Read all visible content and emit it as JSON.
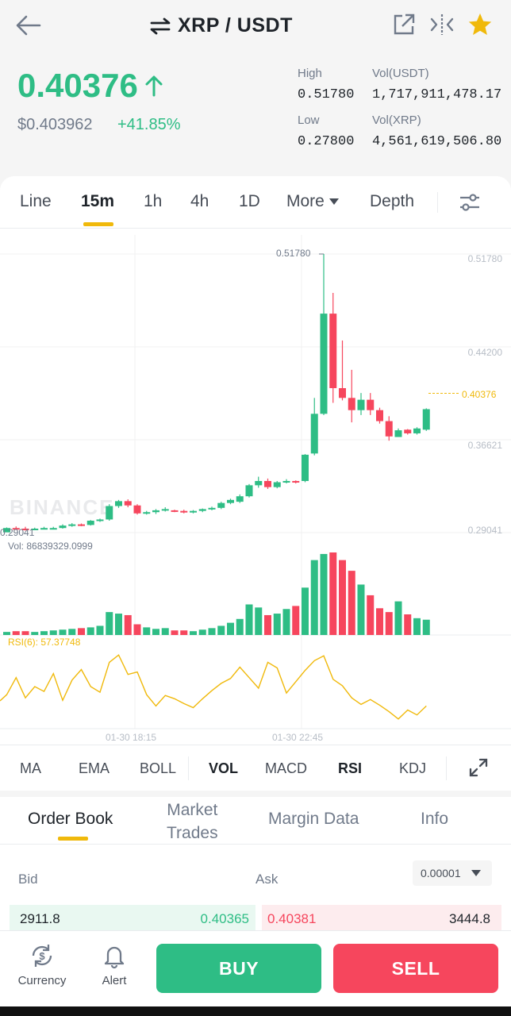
{
  "header": {
    "pair": "XRP / USDT",
    "icons": [
      "back-arrow-icon",
      "swap-icon",
      "external-link-icon",
      "compare-icon",
      "star-icon"
    ]
  },
  "ticker": {
    "last_price": "0.40376",
    "usd_price": "$0.403962",
    "change": "+41.85%",
    "high_label": "High",
    "high": "0.51780",
    "low_label": "Low",
    "low": "0.27800",
    "vol_usdt_label": "Vol(USDT)",
    "vol_usdt": "1,717,911,478.17",
    "vol_xrp_label": "Vol(XRP)",
    "vol_xrp": "4,561,619,506.80"
  },
  "timeframes": {
    "line": "Line",
    "m15": "15m",
    "h1": "1h",
    "h4": "4h",
    "d1": "1D",
    "more": "More",
    "depth": "Depth",
    "active": "15m"
  },
  "chart_data": {
    "type": "candlestick",
    "price_axis": [
      "0.51780",
      "0.44200",
      "0.36621",
      "0.29041"
    ],
    "high_label": "0.51780",
    "low_label": "0.29041",
    "last_price": "0.40376",
    "volume_label": "Vol: 86839329.0999",
    "rsi_label": "RSI(6): 57.37748",
    "time_labels": [
      "01-30 18:15",
      "01-30 22:45"
    ],
    "watermark": "BINANCE",
    "colors": {
      "up": "#2ebd85",
      "down": "#f6465d",
      "rsi": "#f0b90b"
    },
    "candles": [
      [
        0.29,
        0.2935,
        0.2905,
        0.294
      ],
      [
        0.2935,
        0.293,
        0.292,
        0.2948
      ],
      [
        0.293,
        0.2925,
        0.2915,
        0.2945
      ],
      [
        0.2925,
        0.293,
        0.2918,
        0.2938
      ],
      [
        0.293,
        0.2935,
        0.2925,
        0.2945
      ],
      [
        0.2935,
        0.2935,
        0.2925,
        0.2945
      ],
      [
        0.2935,
        0.2955,
        0.293,
        0.2965
      ],
      [
        0.2955,
        0.2965,
        0.2945,
        0.2975
      ],
      [
        0.2965,
        0.296,
        0.295,
        0.2972
      ],
      [
        0.296,
        0.2995,
        0.2955,
        0.3
      ],
      [
        0.2995,
        0.3005,
        0.2985,
        0.3012
      ],
      [
        0.3005,
        0.3115,
        0.2995,
        0.313
      ],
      [
        0.3115,
        0.3155,
        0.31,
        0.3165
      ],
      [
        0.3155,
        0.312,
        0.3105,
        0.317
      ],
      [
        0.312,
        0.3055,
        0.3045,
        0.313
      ],
      [
        0.3055,
        0.3065,
        0.3045,
        0.3075
      ],
      [
        0.3065,
        0.308,
        0.305,
        0.309
      ],
      [
        0.308,
        0.309,
        0.307,
        0.3105
      ],
      [
        0.308,
        0.3075,
        0.3065,
        0.3085
      ],
      [
        0.3075,
        0.3065,
        0.3055,
        0.3085
      ],
      [
        0.3065,
        0.3075,
        0.3055,
        0.3082
      ],
      [
        0.3075,
        0.309,
        0.3065,
        0.3095
      ],
      [
        0.309,
        0.31,
        0.308,
        0.311
      ],
      [
        0.31,
        0.314,
        0.309,
        0.315
      ],
      [
        0.314,
        0.3165,
        0.313,
        0.3175
      ],
      [
        0.315,
        0.3195,
        0.314,
        0.321
      ],
      [
        0.3195,
        0.3285,
        0.3185,
        0.3295
      ],
      [
        0.3285,
        0.332,
        0.3265,
        0.3355
      ],
      [
        0.332,
        0.327,
        0.3255,
        0.334
      ],
      [
        0.327,
        0.331,
        0.326,
        0.332
      ],
      [
        0.3315,
        0.332,
        0.33,
        0.3335
      ],
      [
        0.332,
        0.331,
        0.33,
        0.3325
      ],
      [
        0.332,
        0.3535,
        0.331,
        0.354
      ],
      [
        0.3545,
        0.387,
        0.353,
        0.4
      ],
      [
        0.387,
        0.469,
        0.386,
        0.5178
      ],
      [
        0.469,
        0.408,
        0.396,
        0.486
      ],
      [
        0.408,
        0.4,
        0.398,
        0.447
      ],
      [
        0.4,
        0.39,
        0.38,
        0.423
      ],
      [
        0.39,
        0.3985,
        0.386,
        0.404
      ],
      [
        0.3985,
        0.39,
        0.386,
        0.404
      ],
      [
        0.39,
        0.381,
        0.379,
        0.392
      ],
      [
        0.381,
        0.3685,
        0.365,
        0.385
      ],
      [
        0.368,
        0.3735,
        0.369,
        0.375
      ],
      [
        0.374,
        0.371,
        0.37,
        0.3745
      ],
      [
        0.371,
        0.375,
        0.37,
        0.376
      ],
      [
        0.374,
        0.3908,
        0.373,
        0.3915
      ]
    ],
    "volume": [
      4,
      5,
      5,
      4,
      5,
      6,
      7,
      8,
      9,
      10,
      12,
      30,
      28,
      26,
      14,
      10,
      8,
      9,
      6,
      6,
      5,
      7,
      9,
      12,
      16,
      21,
      40,
      36,
      26,
      28,
      34,
      38,
      62,
      98,
      106,
      108,
      98,
      84,
      66,
      52,
      35,
      30,
      44,
      27,
      22,
      20
    ],
    "rsi": [
      0.42,
      0.63,
      0.38,
      0.52,
      0.46,
      0.68,
      0.35,
      0.6,
      0.73,
      0.52,
      0.45,
      0.82,
      0.91,
      0.67,
      0.7,
      0.42,
      0.28,
      0.41,
      0.37,
      0.31,
      0.26,
      0.37,
      0.47,
      0.56,
      0.62,
      0.76,
      0.63,
      0.5,
      0.82,
      0.75,
      0.44,
      0.58,
      0.72,
      0.84,
      0.9,
      0.61,
      0.53,
      0.38,
      0.3,
      0.36,
      0.29,
      0.21,
      0.12,
      0.23,
      0.17,
      0.28
    ]
  },
  "indicators": {
    "ma": "MA",
    "ema": "EMA",
    "boll": "BOLL",
    "vol": "VOL",
    "macd": "MACD",
    "rsi": "RSI",
    "kdj": "KDJ"
  },
  "orderbook": {
    "tabs": [
      "Order Book",
      "Market",
      "Trades",
      "Margin Data",
      "Info"
    ],
    "bid_label": "Bid",
    "ask_label": "Ask",
    "precision": "0.00001",
    "bid_qty": "2911.8",
    "bid_price": "0.40365",
    "ask_price": "0.40381",
    "ask_qty": "3444.8"
  },
  "bottom": {
    "currency": "Currency",
    "alert": "Alert",
    "buy": "BUY",
    "sell": "SELL"
  }
}
